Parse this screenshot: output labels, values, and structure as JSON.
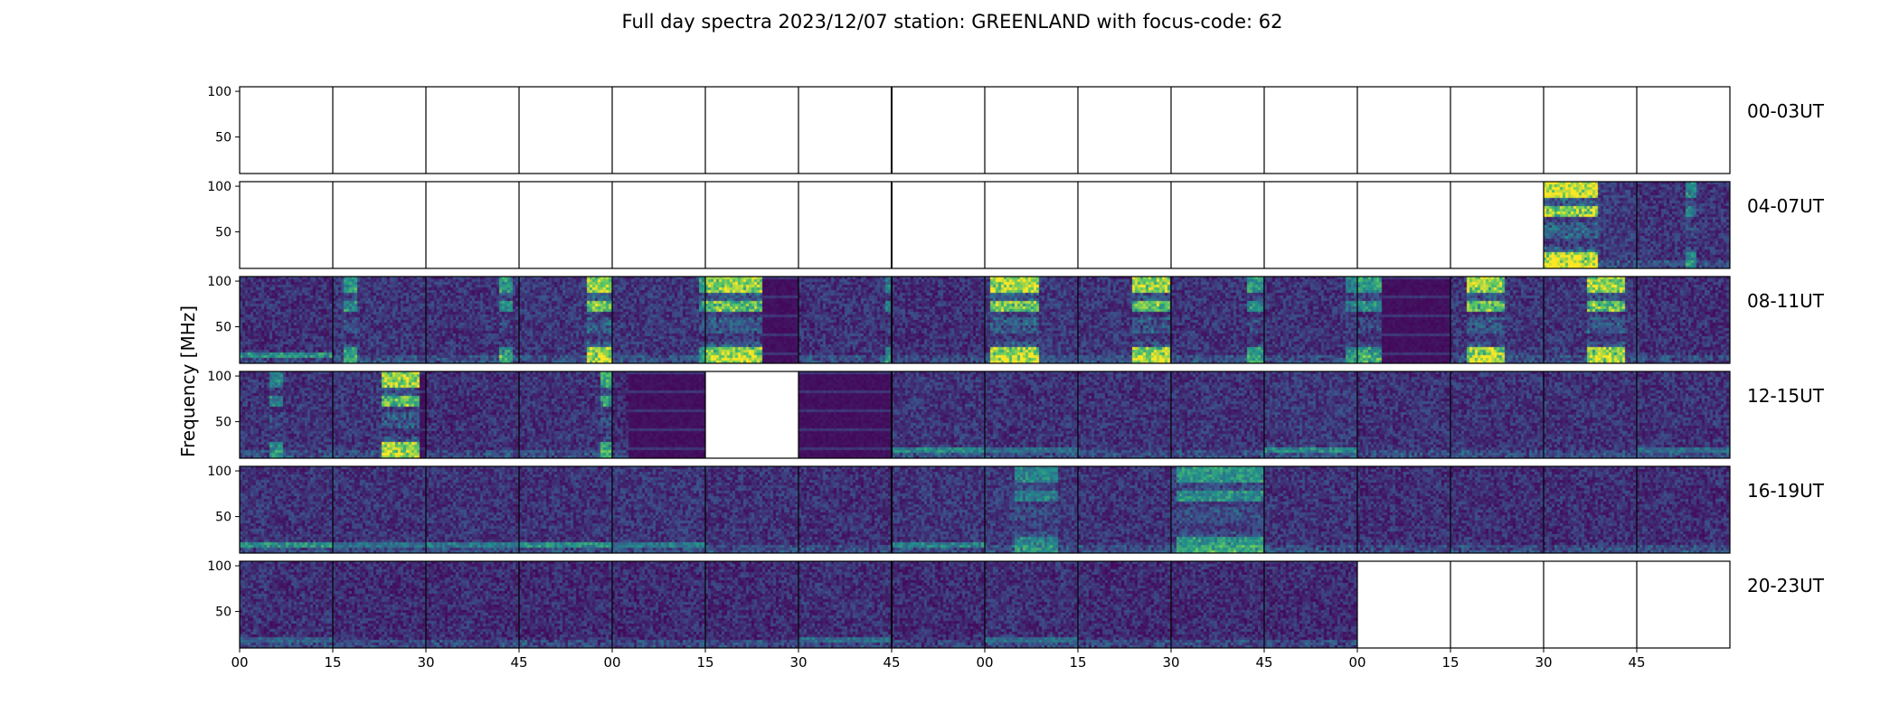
{
  "chart_data": {
    "type": "heatmap",
    "title": "Full day spectra 2023/12/07 station: GREENLAND with focus-code: 62",
    "ylabel": "Frequency [MHz]",
    "xlabel": "",
    "ylim": [
      10,
      105
    ],
    "yticks": [
      50,
      100
    ],
    "xtick_labels": [
      "00",
      "15",
      "30",
      "45",
      "00",
      "15",
      "30",
      "45",
      "00",
      "15",
      "30",
      "45",
      "00",
      "15",
      "30",
      "45"
    ],
    "panels_per_row": 16,
    "panel_minutes": 15,
    "colormap": [
      "#440154",
      "#3b528b",
      "#21918c",
      "#5ec962",
      "#fde725"
    ],
    "empty_panel_color": "#ffffff",
    "rows": [
      {
        "label": "00-03UT",
        "panels": [
          {
            "data": false
          },
          {
            "data": false
          },
          {
            "data": false
          },
          {
            "data": false
          },
          {
            "data": false
          },
          {
            "data": false
          },
          {
            "data": false
          },
          {
            "data": false
          },
          {
            "data": false
          },
          {
            "data": false
          },
          {
            "data": false
          },
          {
            "data": false
          },
          {
            "data": false
          },
          {
            "data": false
          },
          {
            "data": false
          },
          {
            "data": false
          }
        ]
      },
      {
        "label": "04-07UT",
        "panels": [
          {
            "data": false
          },
          {
            "data": false
          },
          {
            "data": false
          },
          {
            "data": false
          },
          {
            "data": false
          },
          {
            "data": false
          },
          {
            "data": false
          },
          {
            "data": false
          },
          {
            "data": false
          },
          {
            "data": false
          },
          {
            "data": false
          },
          {
            "data": false
          },
          {
            "data": false
          },
          {
            "data": false
          },
          {
            "data": true,
            "level": 0.18,
            "burst": [
              0.0,
              0.56
            ],
            "intensity": 0.95
          },
          {
            "data": true,
            "level": 0.15,
            "burst": [
              0.5,
              0.62
            ],
            "intensity": 0.4
          }
        ]
      },
      {
        "label": "08-11UT",
        "panels": [
          {
            "data": true,
            "level": 0.14,
            "lowline": 0.55
          },
          {
            "data": true,
            "level": 0.16,
            "burst": [
              0.1,
              0.25
            ],
            "intensity": 0.5
          },
          {
            "data": true,
            "level": 0.15,
            "burst": [
              0.75,
              0.9
            ],
            "intensity": 0.5
          },
          {
            "data": true,
            "level": 0.16,
            "burst": [
              0.7,
              1.0
            ],
            "intensity": 0.9
          },
          {
            "data": true,
            "level": 0.16,
            "burst": [
              0.9,
              1.0
            ],
            "intensity": 0.5
          },
          {
            "data": true,
            "level": 0.17,
            "burst": [
              0.0,
              0.6
            ],
            "intensity": 0.85,
            "dark": [
              0.6,
              1.0
            ]
          },
          {
            "data": true,
            "level": 0.15,
            "burst": [
              0.9,
              1.0
            ],
            "intensity": 0.4
          },
          {
            "data": true,
            "level": 0.14
          },
          {
            "data": true,
            "level": 0.17,
            "burst": [
              0.05,
              0.55
            ],
            "intensity": 0.9
          },
          {
            "data": true,
            "level": 0.16,
            "burst": [
              0.55,
              0.95
            ],
            "intensity": 0.85
          },
          {
            "data": true,
            "level": 0.15,
            "burst": [
              0.8,
              0.95
            ],
            "intensity": 0.5
          },
          {
            "data": true,
            "level": 0.15,
            "burst": [
              0.85,
              1.0
            ],
            "intensity": 0.4
          },
          {
            "data": true,
            "level": 0.15,
            "burst": [
              0.0,
              0.25
            ],
            "intensity": 0.5,
            "dark": [
              0.25,
              1.0
            ]
          },
          {
            "data": true,
            "level": 0.16,
            "burst": [
              0.15,
              0.55
            ],
            "intensity": 0.85
          },
          {
            "data": true,
            "level": 0.16,
            "burst": [
              0.45,
              0.85
            ],
            "intensity": 0.85
          },
          {
            "data": true,
            "level": 0.14
          }
        ]
      },
      {
        "label": "12-15UT",
        "panels": [
          {
            "data": true,
            "level": 0.15,
            "burst": [
              0.3,
              0.45
            ],
            "intensity": 0.4
          },
          {
            "data": true,
            "level": 0.16,
            "burst": [
              0.5,
              0.9
            ],
            "intensity": 0.85,
            "dark": [
              0.9,
              1.0
            ]
          },
          {
            "data": true,
            "level": 0.14
          },
          {
            "data": true,
            "level": 0.15,
            "burst": [
              0.85,
              0.98
            ],
            "intensity": 0.6
          },
          {
            "data": true,
            "level": 0.12,
            "dark": [
              0.15,
              1.0
            ]
          },
          {
            "data": false
          },
          {
            "data": true,
            "level": 0.1,
            "dark": [
              0.0,
              1.0
            ]
          },
          {
            "data": true,
            "level": 0.16,
            "lowline": 0.5
          },
          {
            "data": true,
            "level": 0.15,
            "lowline": 0.4
          },
          {
            "data": true,
            "level": 0.15
          },
          {
            "data": true,
            "level": 0.15
          },
          {
            "data": true,
            "level": 0.17,
            "lowline": 0.5
          },
          {
            "data": true,
            "level": 0.15
          },
          {
            "data": true,
            "level": 0.15
          },
          {
            "data": true,
            "level": 0.15
          },
          {
            "data": true,
            "level": 0.15,
            "lowline": 0.4
          }
        ]
      },
      {
        "label": "16-19UT",
        "panels": [
          {
            "data": true,
            "level": 0.15,
            "lowline": 0.55
          },
          {
            "data": true,
            "level": 0.15,
            "lowline": 0.4
          },
          {
            "data": true,
            "level": 0.15,
            "lowline": 0.45
          },
          {
            "data": true,
            "level": 0.15,
            "lowline": 0.55
          },
          {
            "data": true,
            "level": 0.16,
            "lowline": 0.45
          },
          {
            "data": true,
            "level": 0.15
          },
          {
            "data": true,
            "level": 0.14
          },
          {
            "data": true,
            "level": 0.16,
            "lowline": 0.5
          },
          {
            "data": true,
            "level": 0.17,
            "burst": [
              0.3,
              0.75
            ],
            "intensity": 0.35
          },
          {
            "data": true,
            "level": 0.15
          },
          {
            "data": true,
            "level": 0.18,
            "burst": [
              0.05,
              0.95
            ],
            "intensity": 0.45
          },
          {
            "data": true,
            "level": 0.15
          },
          {
            "data": true,
            "level": 0.14
          },
          {
            "data": true,
            "level": 0.14
          },
          {
            "data": true,
            "level": 0.14
          },
          {
            "data": true,
            "level": 0.14
          }
        ]
      },
      {
        "label": "20-23UT",
        "panels": [
          {
            "data": true,
            "level": 0.14,
            "lowline": 0.35
          },
          {
            "data": true,
            "level": 0.13
          },
          {
            "data": true,
            "level": 0.13
          },
          {
            "data": true,
            "level": 0.13
          },
          {
            "data": true,
            "level": 0.13
          },
          {
            "data": true,
            "level": 0.13
          },
          {
            "data": true,
            "level": 0.14,
            "lowline": 0.4
          },
          {
            "data": true,
            "level": 0.13
          },
          {
            "data": true,
            "level": 0.14,
            "lowline": 0.4
          },
          {
            "data": true,
            "level": 0.13
          },
          {
            "data": true,
            "level": 0.13
          },
          {
            "data": true,
            "level": 0.13
          },
          {
            "data": false
          },
          {
            "data": false
          },
          {
            "data": false
          },
          {
            "data": false
          }
        ]
      }
    ]
  }
}
